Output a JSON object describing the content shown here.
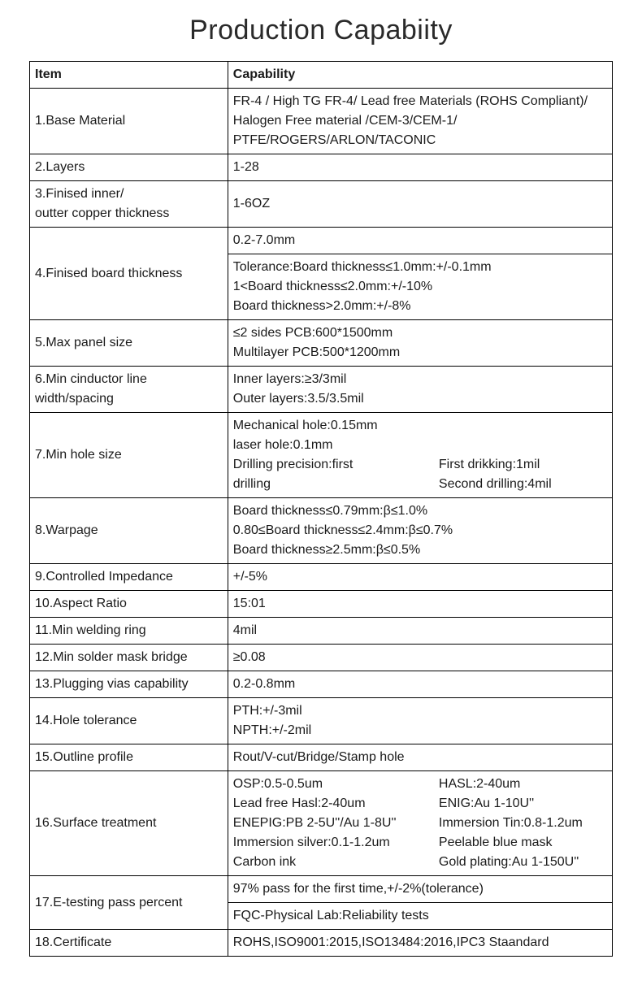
{
  "title": "Production Capabiity",
  "header": {
    "item": "Item",
    "capability": "Capability"
  },
  "rows": {
    "r1": {
      "item": "1.Base Material",
      "cap": "FR-4 / High TG FR-4/ Lead free Materials (ROHS Compliant)/\nHalogen Free material /CEM-3/CEM-1/\nPTFE/ROGERS/ARLON/TACONIC"
    },
    "r2": {
      "item": "2.Layers",
      "cap": "1-28"
    },
    "r3": {
      "item": "3.Finised inner/\noutter copper thickness",
      "cap": "1-6OZ"
    },
    "r4": {
      "item": "4.Finised board thickness",
      "cap_a": "0.2-7.0mm",
      "cap_b": "Tolerance:Board thickness≤1.0mm:+/-0.1mm\n                 1<Board thickness≤2.0mm:+/-10%\n                 Board thickness>2.0mm:+/-8%"
    },
    "r5": {
      "item": "5.Max panel size",
      "cap": "≤2 sides PCB:600*1500mm\nMultilayer PCB:500*1200mm"
    },
    "r6": {
      "item": "6.Min cinductor line\nwidth/spacing",
      "cap": "Inner layers:≥3/3mil\nOuter layers:3.5/3.5mil"
    },
    "r7": {
      "item": "7.Min hole size",
      "cap_left": "Mechanical hole:0.15mm\nlaser hole:0.1mm\nDrilling precision:first\ndrilling",
      "cap_right": "\n\nFirst  drikking:1mil\nSecond drilling:4mil"
    },
    "r8": {
      "item": "8.Warpage",
      "cap": "Board thickness≤0.79mm:β≤1.0%\n0.80≤Board thickness≤2.4mm:β≤0.7%\nBoard thickness≥2.5mm:β≤0.5%"
    },
    "r9": {
      "item": "9.Controlled Impedance",
      "cap": "+/-5%"
    },
    "r10": {
      "item": "10.Aspect Ratio",
      "cap": "15:01"
    },
    "r11": {
      "item": "11.Min welding ring",
      "cap": "4mil"
    },
    "r12": {
      "item": "12.Min solder mask bridge",
      "cap": "≥0.08"
    },
    "r13": {
      "item": "13.Plugging vias capability",
      "cap": "0.2-0.8mm"
    },
    "r14": {
      "item": "14.Hole tolerance",
      "cap": "PTH:+/-3mil\nNPTH:+/-2mil"
    },
    "r15": {
      "item": "15.Outline profile",
      "cap": "Rout/V-cut/Bridge/Stamp hole"
    },
    "r16": {
      "item": "16.Surface treatment",
      "cap_left": "OSP:0.5-0.5um\nLead free Hasl:2-40um\nENEPIG:PB 2-5U''/Au 1-8U''\nImmersion silver:0.1-1.2um\nCarbon ink",
      "cap_right": "HASL:2-40um\nENIG:Au 1-10U''\nImmersion Tin:0.8-1.2um\nPeelable blue mask\nGold plating:Au 1-150U''"
    },
    "r17": {
      "item": "17.E-testing pass percent",
      "cap_a": "97% pass for the first time,+/-2%(tolerance)",
      "cap_b": "FQC-Physical Lab:Reliability tests"
    },
    "r18": {
      "item": "18.Certificate",
      "cap": "ROHS,ISO9001:2015,ISO13484:2016,IPC3 Staandard"
    }
  }
}
